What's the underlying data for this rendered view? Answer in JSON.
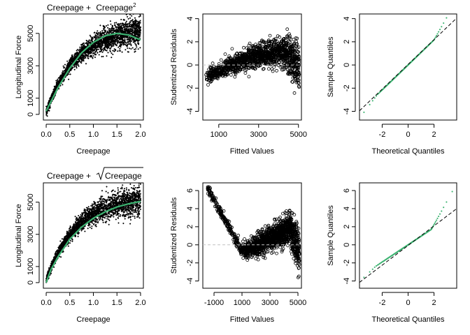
{
  "chart_data": [
    {
      "type": "scatter",
      "id": "p1",
      "title_parts": [
        "Creepage + ",
        "Creepage",
        "2"
      ],
      "xlabel": "Creepage",
      "ylabel": "Longitudinal Force",
      "xlim": [
        0,
        2
      ],
      "ylim": [
        0,
        6000
      ],
      "xticks": [
        0,
        0.5,
        1,
        1.5,
        2
      ],
      "xtick_labels": [
        "0.0",
        "0.5",
        "1.0",
        "1.5",
        "2.0"
      ],
      "yticks": [
        0,
        1000,
        3000,
        5000
      ],
      "ytick_labels": [
        "0",
        "1000",
        "3000",
        "5000"
      ],
      "point_color": "#000000",
      "fit_color": "#3cb371",
      "fit": "quadratic",
      "fit_points": [
        [
          0,
          200
        ],
        [
          0.25,
          1650
        ],
        [
          0.5,
          2850
        ],
        [
          0.75,
          3800
        ],
        [
          1.0,
          4450
        ],
        [
          1.25,
          4850
        ],
        [
          1.5,
          5000
        ],
        [
          1.75,
          4900
        ],
        [
          2.0,
          4600
        ]
      ]
    },
    {
      "type": "scatter",
      "id": "p2",
      "xlabel": "Fitted Values",
      "ylabel": "Studentized Residuals",
      "xticks": [
        1000,
        3000,
        5000
      ],
      "xtick_labels": [
        "1000",
        "3000",
        "5000"
      ],
      "yticks": [
        -4,
        -2,
        0,
        2,
        4
      ],
      "ytick_labels": [
        "-4",
        "-2",
        "0",
        "2",
        "4"
      ],
      "xlim": [
        200,
        5100
      ],
      "ylim": [
        -4.7,
        4.3
      ],
      "reference_line": 0,
      "reference_color": "#c0c0c0"
    },
    {
      "type": "scatter",
      "id": "p3",
      "xlabel": "Theoretical Quantiles",
      "ylabel": "Sample Quantiles",
      "xticks": [
        -2,
        0,
        2
      ],
      "xtick_labels": [
        "-2",
        "0",
        "2"
      ],
      "yticks": [
        -4,
        -2,
        0,
        2,
        4
      ],
      "ytick_labels": [
        "-4",
        "-2",
        "0",
        "2",
        "4"
      ],
      "xlim": [
        -3.8,
        3.8
      ],
      "ylim": [
        -4.7,
        4.3
      ],
      "point_color": "#3cb371",
      "qq_line_color": "#000000"
    },
    {
      "type": "scatter",
      "id": "p4",
      "title_parts": [
        "Creepage + ",
        "Creepage"
      ],
      "xlabel": "Creepage",
      "ylabel": "Longitudinal Force",
      "xlim": [
        0,
        2
      ],
      "ylim": [
        0,
        6000
      ],
      "xticks": [
        0,
        0.5,
        1,
        1.5,
        2
      ],
      "xtick_labels": [
        "0.0",
        "0.5",
        "1.0",
        "1.5",
        "2.0"
      ],
      "yticks": [
        0,
        1000,
        3000,
        5000
      ],
      "ytick_labels": [
        "0",
        "1000",
        "3000",
        "5000"
      ],
      "fit": "sqrt",
      "fit_points": [
        [
          0,
          0
        ],
        [
          0.1,
          800
        ],
        [
          0.25,
          1600
        ],
        [
          0.5,
          2700
        ],
        [
          0.75,
          3450
        ],
        [
          1.0,
          4000
        ],
        [
          1.25,
          4400
        ],
        [
          1.5,
          4700
        ],
        [
          1.75,
          4900
        ],
        [
          2.0,
          5050
        ]
      ]
    },
    {
      "type": "scatter",
      "id": "p5",
      "xlabel": "Fitted Values",
      "ylabel": "Studentized Residuals",
      "xticks": [
        -1000,
        1000,
        3000,
        5000
      ],
      "xtick_labels": [
        "-1000",
        "1000",
        "3000",
        "5000"
      ],
      "yticks": [
        -4,
        -2,
        0,
        2,
        4,
        6
      ],
      "ytick_labels": [
        "-4",
        "-2",
        "0",
        "2",
        "4",
        "6"
      ],
      "xlim": [
        -1800,
        5200
      ],
      "ylim": [
        -4.8,
        6.8
      ],
      "reference_line": 0
    },
    {
      "type": "scatter",
      "id": "p6",
      "xlabel": "Theoretical Quantiles",
      "ylabel": "Sample Quantiles",
      "xticks": [
        -2,
        0,
        2
      ],
      "xtick_labels": [
        "-2",
        "0",
        "2"
      ],
      "yticks": [
        -4,
        -2,
        0,
        2,
        4,
        6
      ],
      "ytick_labels": [
        "-4",
        "-2",
        "0",
        "2",
        "4",
        "6"
      ],
      "xlim": [
        -3.8,
        3.8
      ],
      "ylim": [
        -4.8,
        6.8
      ]
    }
  ]
}
